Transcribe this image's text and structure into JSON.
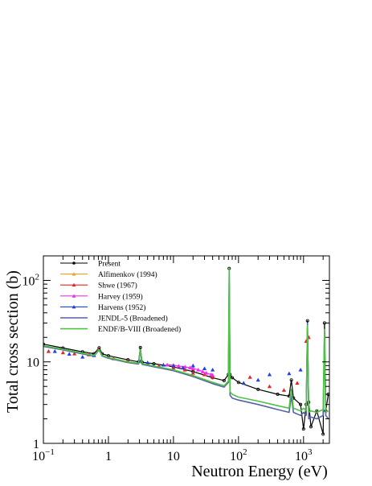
{
  "chart_data": {
    "type": "line",
    "title": "",
    "xlabel": "Neutron Energy (eV)",
    "ylabel": "Total cross section (b)",
    "xscale": "log",
    "yscale": "log",
    "xlim": [
      0.1,
      2500
    ],
    "ylim": [
      1,
      200
    ],
    "grid": false,
    "legend_position": "top-left",
    "x_ticks": [
      {
        "value": 0.1,
        "base": "10",
        "exp": "−1"
      },
      {
        "value": 1,
        "text": "1"
      },
      {
        "value": 10,
        "text": "10"
      },
      {
        "value": 100,
        "base": "10",
        "exp": "2"
      },
      {
        "value": 1000,
        "base": "10",
        "exp": "3"
      }
    ],
    "y_ticks": [
      {
        "value": 1,
        "text": "1"
      },
      {
        "value": 10,
        "text": "10"
      },
      {
        "value": 100,
        "base": "10",
        "exp": "2"
      }
    ],
    "series": [
      {
        "name": "Present",
        "color": "#000000",
        "marker": "circle",
        "style": "line+marker",
        "x": [
          0.1,
          0.2,
          0.4,
          0.6,
          0.72,
          0.8,
          1.0,
          2.0,
          2.9,
          3.1,
          3.3,
          5,
          10,
          20,
          40,
          60,
          70,
          72,
          74,
          80,
          100,
          200,
          400,
          600,
          650,
          700,
          900,
          1000,
          1100,
          1150,
          1200,
          1300,
          1600,
          2000,
          2100,
          2200,
          2400
        ],
        "y": [
          16.5,
          14.8,
          13.3,
          12.6,
          14.9,
          12.6,
          11.9,
          10.6,
          10.0,
          15.0,
          9.9,
          9.5,
          8.7,
          7.6,
          6.4,
          5.9,
          7.0,
          140,
          7.0,
          6.4,
          5.6,
          4.6,
          4.0,
          3.8,
          6.0,
          3.6,
          3.0,
          1.5,
          3.0,
          32,
          3.2,
          1.6,
          2.5,
          1.3,
          30,
          2.5,
          4.0
        ]
      },
      {
        "name": "Alfimenkov (1994)",
        "color": "#f0a020",
        "marker": "triangle",
        "style": "marker",
        "x": [],
        "y": []
      },
      {
        "name": "Shwe (1967)",
        "color": "#e8222a",
        "marker": "triangle",
        "style": "marker",
        "x": [
          0.12,
          0.2,
          0.3,
          0.5,
          0.7,
          1.2,
          2,
          4,
          6,
          10,
          15,
          20,
          30,
          40,
          150,
          300,
          500,
          800,
          1100,
          1200
        ],
        "y": [
          13.5,
          13.0,
          12.6,
          12.3,
          14.0,
          11.0,
          10.3,
          9.5,
          9.0,
          8.5,
          8.0,
          7.3,
          7.0,
          6.5,
          6.5,
          5.0,
          4.5,
          5.5,
          18,
          20
        ]
      },
      {
        "name": "Harvey (1959)",
        "color": "#ee30ee",
        "marker": "triangle",
        "style": "line+marker",
        "x": [
          8,
          10,
          12,
          15,
          18,
          20,
          24,
          28,
          32,
          38,
          40
        ],
        "y": [
          9.2,
          9.1,
          8.9,
          8.7,
          8.5,
          8.3,
          8.0,
          7.6,
          7.3,
          7.0,
          6.9
        ]
      },
      {
        "name": "Harvens (1952)",
        "color": "#2040e0",
        "marker": "triangle",
        "style": "marker",
        "x": [
          0.15,
          0.25,
          0.4,
          0.6,
          3.2,
          4,
          7,
          10,
          14,
          20,
          30,
          40,
          120,
          200,
          300,
          600,
          900
        ],
        "y": [
          13.5,
          12.5,
          11.5,
          12.0,
          10.5,
          9.8,
          9.2,
          9.0,
          8.5,
          9.0,
          8.3,
          8.0,
          5.5,
          6.0,
          7.0,
          7.2,
          8.0
        ]
      },
      {
        "name": "JENDL-5 (Broadened)",
        "color": "#5561a8",
        "marker": "none",
        "style": "line",
        "x": [
          0.1,
          0.2,
          0.4,
          0.6,
          0.72,
          0.8,
          1.0,
          2.0,
          2.9,
          3.1,
          3.3,
          5,
          10,
          20,
          40,
          60,
          70,
          72,
          74,
          80,
          100,
          200,
          400,
          600,
          650,
          700,
          900,
          1000,
          1100,
          1150,
          1200,
          1300,
          1600,
          2000,
          2100,
          2200,
          2400
        ],
        "y": [
          15.5,
          14.0,
          12.5,
          11.8,
          14.0,
          11.8,
          11.1,
          9.8,
          9.4,
          14.0,
          9.3,
          8.7,
          7.8,
          6.6,
          5.4,
          4.9,
          5.6,
          135,
          3.9,
          3.6,
          3.4,
          3.0,
          2.6,
          2.4,
          3.8,
          2.4,
          2.2,
          2.4,
          2.2,
          30,
          2.0,
          2.1,
          2.0,
          2.2,
          24,
          2.2,
          2.0
        ]
      },
      {
        "name": "ENDF/B-VIII (Broadened)",
        "color": "#4cc442",
        "marker": "none",
        "style": "line",
        "x": [
          0.1,
          0.2,
          0.4,
          0.6,
          0.72,
          0.8,
          1.0,
          2.0,
          2.9,
          3.1,
          3.3,
          5,
          10,
          20,
          40,
          60,
          70,
          72,
          74,
          80,
          100,
          200,
          400,
          600,
          650,
          700,
          900,
          1000,
          1100,
          1150,
          1200,
          1300,
          1600,
          2000,
          2100,
          2200,
          2400
        ],
        "y": [
          15.8,
          14.3,
          12.8,
          12.0,
          14.2,
          12.0,
          11.3,
          10.0,
          9.6,
          14.2,
          9.5,
          8.9,
          8.0,
          6.8,
          5.6,
          5.1,
          5.8,
          140,
          4.3,
          4.0,
          3.7,
          3.3,
          2.9,
          2.7,
          4.6,
          2.7,
          2.5,
          2.7,
          2.5,
          28,
          2.4,
          2.5,
          2.4,
          2.6,
          25,
          2.4,
          2.5
        ]
      }
    ]
  }
}
